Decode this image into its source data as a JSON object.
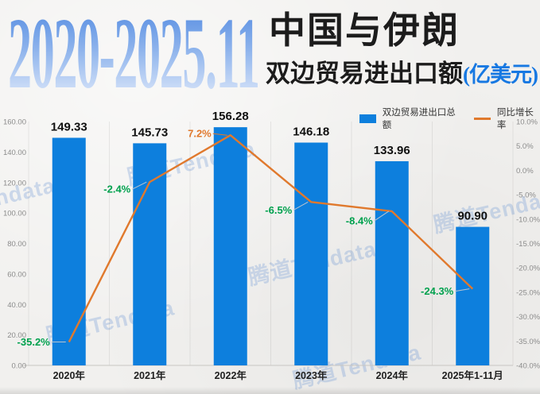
{
  "title": {
    "period": "2020-2025.11",
    "line1": "中国与伊朗",
    "line2": "双边贸易进出口额",
    "unit": "(亿美元)"
  },
  "legend": [
    {
      "label": "双边贸易进出口总额",
      "type": "bar",
      "color": "#0d7fdd"
    },
    {
      "label": "同比增长率",
      "type": "line",
      "color": "#e0792d"
    }
  ],
  "watermark": {
    "text": "腾道Tendata"
  },
  "colors": {
    "bar": "#0d7fdd",
    "line": "#e0792d",
    "positive_label": "#e0792d",
    "negative_label": "#00a14e",
    "axis_text": "#8b8b8b",
    "title_accent": "#1778e2"
  },
  "chart_data": {
    "type": "bar+line combo",
    "categories": [
      "2020年",
      "2021年",
      "2022年",
      "2023年",
      "2024年",
      "2025年1-11月"
    ],
    "series": [
      {
        "name": "双边贸易进出口总额",
        "type": "bar",
        "axis": "left",
        "color": "#0d7fdd",
        "values": [
          149.33,
          145.73,
          156.28,
          146.18,
          133.96,
          90.9
        ]
      },
      {
        "name": "同比增长率",
        "type": "line",
        "axis": "right",
        "unit": "%",
        "color": "#e0792d",
        "values": [
          -35.2,
          -2.4,
          7.2,
          -6.5,
          -8.4,
          -24.3
        ],
        "label_colors": {
          "positive": "#e0792d",
          "negative": "#00a14e"
        }
      }
    ],
    "left_axis": {
      "min": 0,
      "max": 160,
      "step": 20,
      "ticks": [
        "160.00",
        "140.00",
        "120.00",
        "100.00",
        "80.00",
        "60.00",
        "40.00",
        "20.00",
        "0.00"
      ]
    },
    "right_axis": {
      "min": -40,
      "max": 10,
      "step": 5,
      "ticks": [
        "10.0%",
        "5.0%",
        "0.0%",
        "-5.0%",
        "-10.0%",
        "-15.0%",
        "-20.0%",
        "-25.0%",
        "-30.0%",
        "-35.0%",
        "-40.0%"
      ]
    },
    "grid": "vertical category boundaries only",
    "legend_position": "top-right",
    "title": "2020-2025.11 中国与伊朗双边贸易进出口额(亿美元)"
  }
}
